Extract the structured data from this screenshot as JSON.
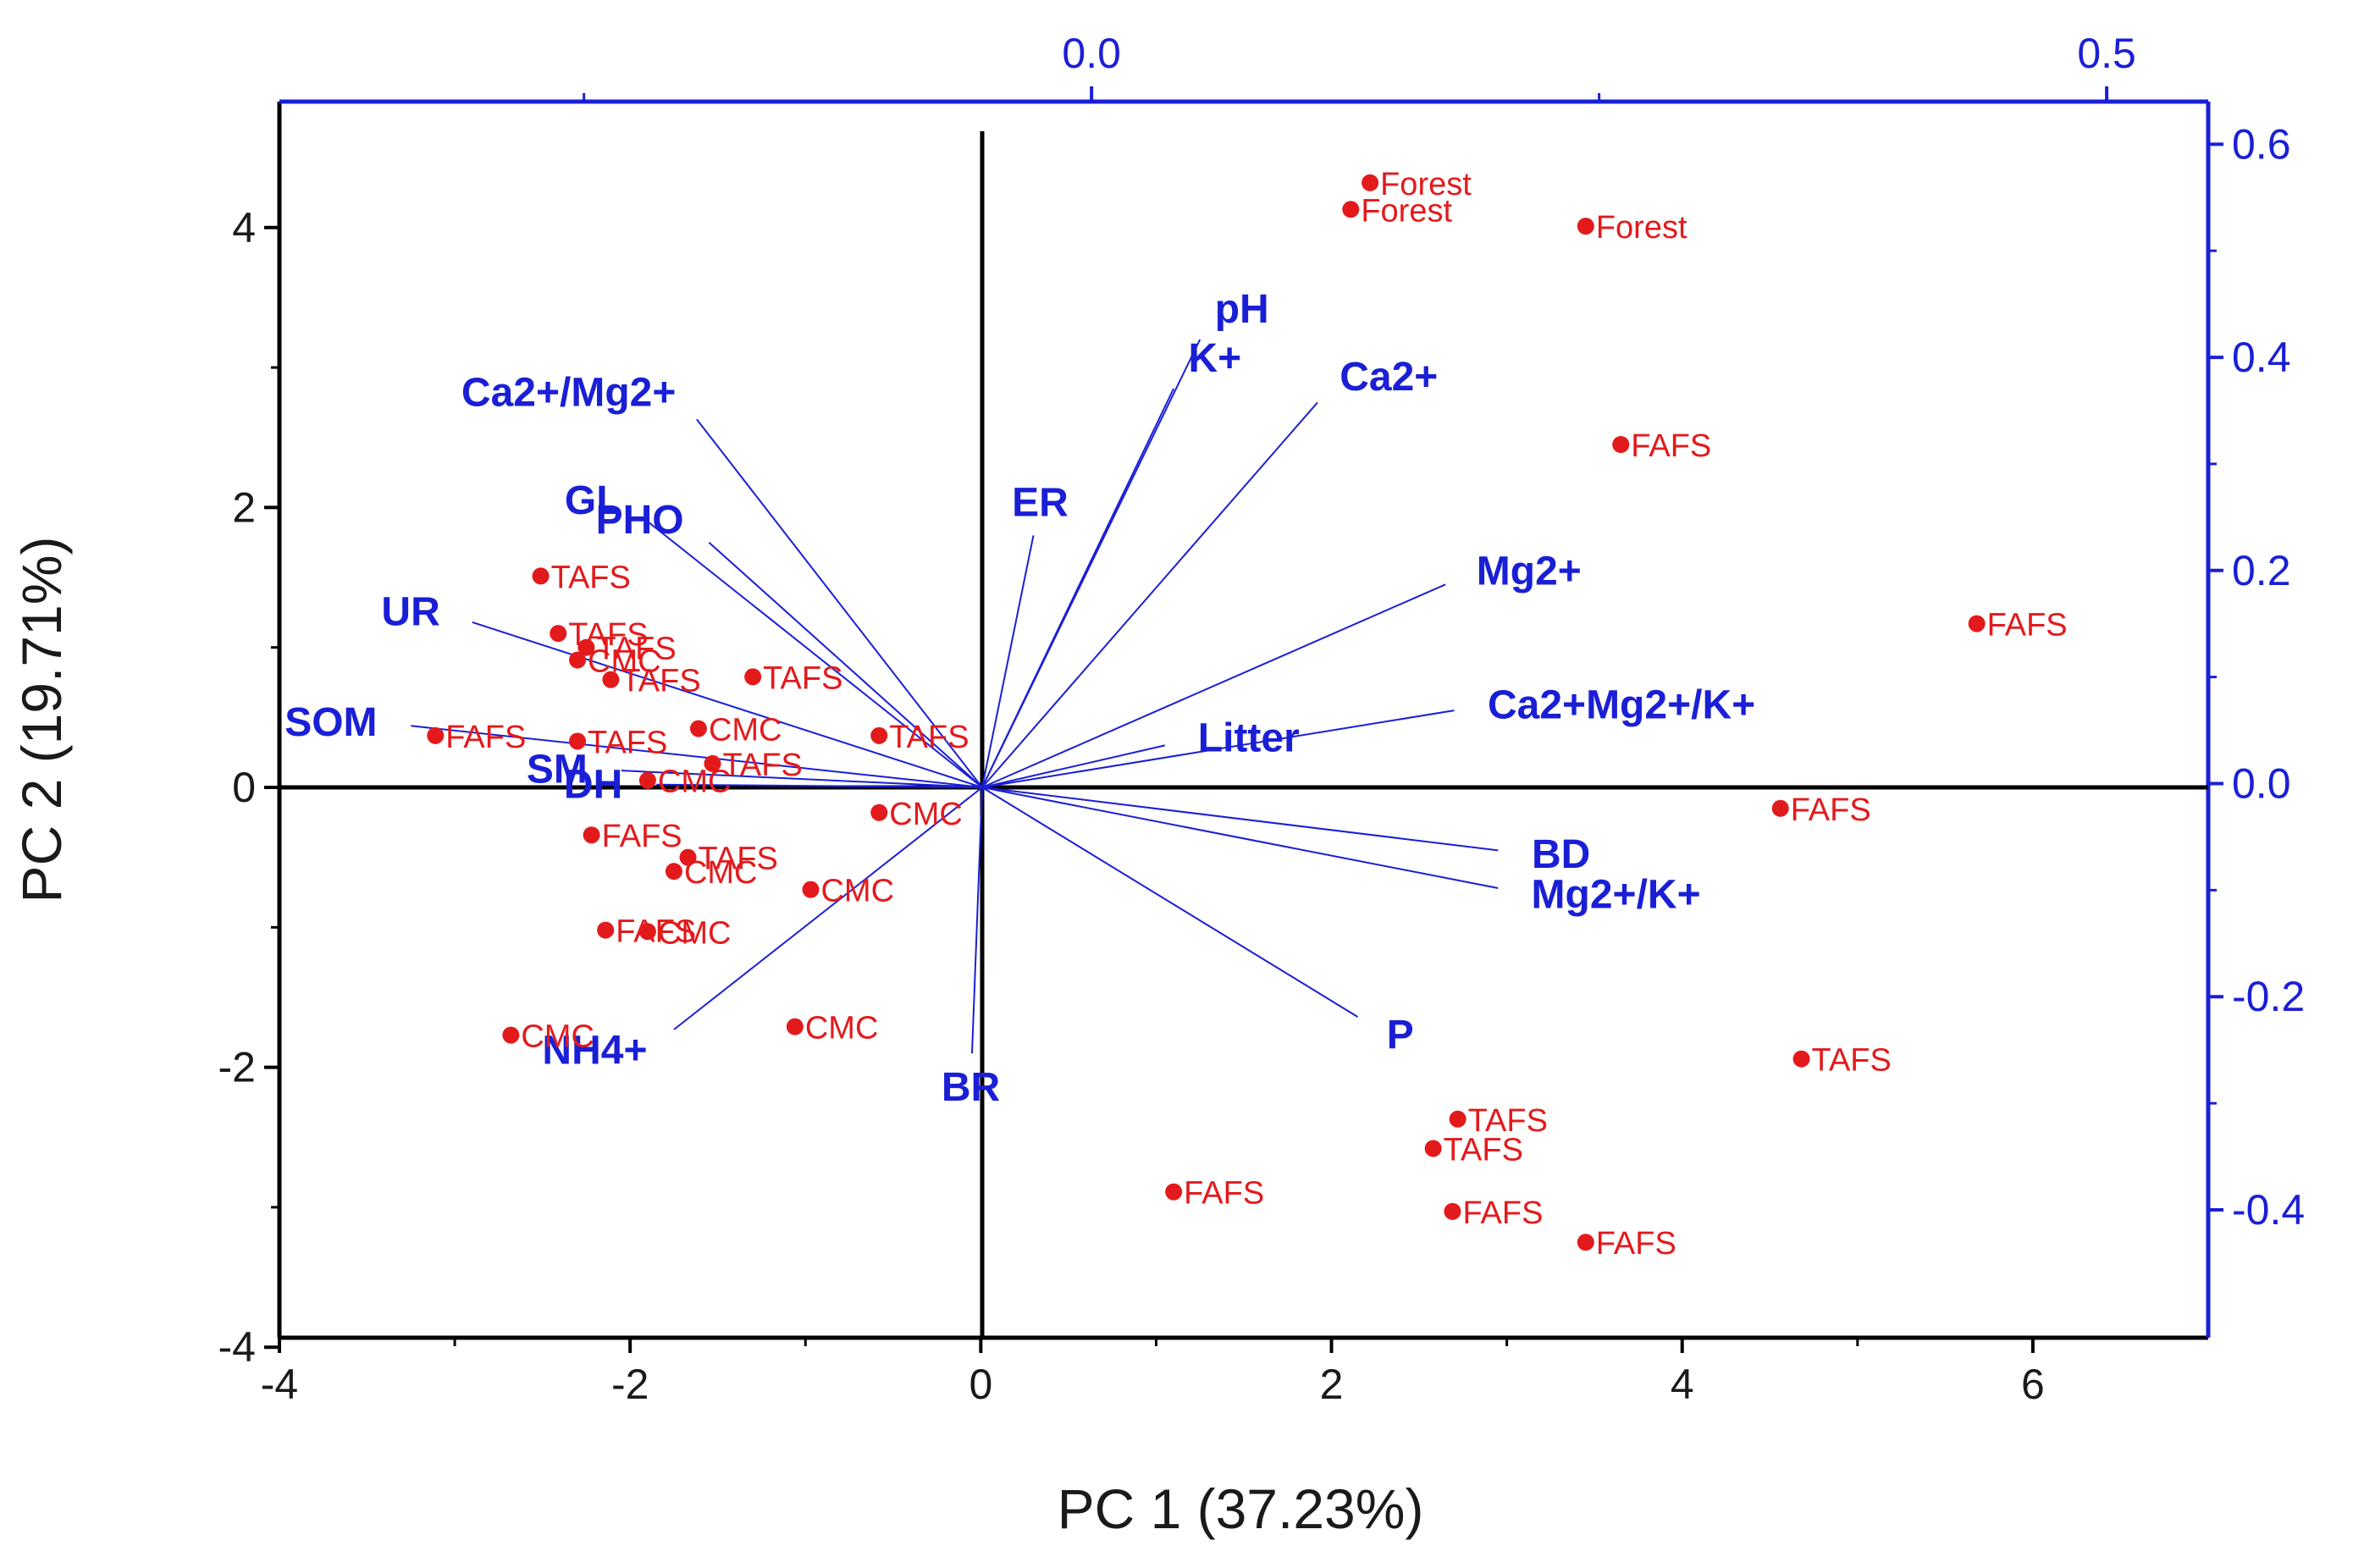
{
  "chart_data": {
    "type": "scatter",
    "subtype": "pca-biplot",
    "xlabel": "PC 1 (37.23%)",
    "ylabel": "PC 2 (19.71%)",
    "xlim": [
      -4,
      7
    ],
    "ylim": [
      -4,
      4.9
    ],
    "x_ticks": [
      "-4",
      "-2",
      "0",
      "2",
      "4",
      "6"
    ],
    "y_ticks": [
      "-4",
      "-2",
      "0",
      "2",
      "4"
    ],
    "top_axis": {
      "lim": [
        -0.4,
        0.55
      ],
      "ticks": [
        "0.0",
        "0.5"
      ],
      "color": "#1a1fd6"
    },
    "right_axis": {
      "lim": [
        -0.52,
        0.64
      ],
      "ticks": [
        "0.6",
        "0.4",
        "0.2",
        "0.0",
        "-0.2",
        "-0.4"
      ],
      "color": "#1a1fd6"
    },
    "point_color": "#e31a1c",
    "loading_color": "#1a1fd6",
    "points": [
      {
        "label": "Forest",
        "x": 2.22,
        "y": 4.32
      },
      {
        "label": "Forest",
        "x": 2.11,
        "y": 4.13
      },
      {
        "label": "Forest",
        "x": 3.45,
        "y": 4.01
      },
      {
        "label": "FAFS",
        "x": 3.65,
        "y": 2.45
      },
      {
        "label": "FAFS",
        "x": 5.68,
        "y": 1.17
      },
      {
        "label": "FAFS",
        "x": 4.56,
        "y": -0.15
      },
      {
        "label": "TAFS",
        "x": 4.68,
        "y": -1.94
      },
      {
        "label": "TAFS",
        "x": 2.72,
        "y": -2.37
      },
      {
        "label": "TAFS",
        "x": 2.58,
        "y": -2.58
      },
      {
        "label": "FAFS",
        "x": 2.69,
        "y": -3.03
      },
      {
        "label": "FAFS",
        "x": 3.45,
        "y": -3.25
      },
      {
        "label": "FAFS",
        "x": 1.1,
        "y": -2.89
      },
      {
        "label": "TAFS",
        "x": -2.51,
        "y": 1.51
      },
      {
        "label": "TAFS",
        "x": -2.41,
        "y": 1.1
      },
      {
        "label": "TAFS",
        "x": -2.25,
        "y": 1.0
      },
      {
        "label": "CMC",
        "x": -2.3,
        "y": 0.91
      },
      {
        "label": "TAFS",
        "x": -2.11,
        "y": 0.77
      },
      {
        "label": "TAFS",
        "x": -1.3,
        "y": 0.79
      },
      {
        "label": "FAFS",
        "x": -3.11,
        "y": 0.37
      },
      {
        "label": "TAFS",
        "x": -2.3,
        "y": 0.33
      },
      {
        "label": "CMC",
        "x": -1.61,
        "y": 0.42
      },
      {
        "label": "TAFS",
        "x": -0.58,
        "y": 0.37
      },
      {
        "label": "TAFS",
        "x": -1.53,
        "y": 0.17
      },
      {
        "label": "CMC",
        "x": -1.9,
        "y": 0.05
      },
      {
        "label": "CMC",
        "x": -0.58,
        "y": -0.18
      },
      {
        "label": "FAFS",
        "x": -2.22,
        "y": -0.34
      },
      {
        "label": "TAFS",
        "x": -1.67,
        "y": -0.5
      },
      {
        "label": "CMC",
        "x": -1.75,
        "y": -0.6
      },
      {
        "label": "CMC",
        "x": -0.97,
        "y": -0.73
      },
      {
        "label": "FAFS",
        "x": -2.14,
        "y": -1.02
      },
      {
        "label": "CMC",
        "x": -1.9,
        "y": -1.03
      },
      {
        "label": "CMC",
        "x": -2.68,
        "y": -1.77
      },
      {
        "label": "CMC",
        "x": -1.06,
        "y": -1.71
      }
    ],
    "loadings": [
      {
        "label": "pH",
        "x": 1.25,
        "y": 3.2
      },
      {
        "label": "K+",
        "x": 1.1,
        "y": 2.85
      },
      {
        "label": "Ca2+",
        "x": 1.92,
        "y": 2.75
      },
      {
        "label": "Ca2+/Mg2+",
        "x": -1.62,
        "y": 2.63
      },
      {
        "label": "ER",
        "x": 0.3,
        "y": 1.8
      },
      {
        "label": "GL",
        "x": -1.9,
        "y": 1.9
      },
      {
        "label": "PHO",
        "x": -1.55,
        "y": 1.75
      },
      {
        "label": "Mg2+",
        "x": 2.65,
        "y": 1.45
      },
      {
        "label": "UR",
        "x": -2.9,
        "y": 1.18
      },
      {
        "label": "Ca2+Mg2+/K+",
        "x": 2.7,
        "y": 0.55
      },
      {
        "label": "Litter",
        "x": 1.05,
        "y": 0.3
      },
      {
        "label": "SOM",
        "x": -3.25,
        "y": 0.44
      },
      {
        "label": "SM",
        "x": -2.05,
        "y": 0.12
      },
      {
        "label": "DH",
        "x": -1.85,
        "y": 0.02
      },
      {
        "label": "BD",
        "x": 2.95,
        "y": -0.45
      },
      {
        "label": "Mg2+/K+",
        "x": 2.95,
        "y": -0.72
      },
      {
        "label": "P",
        "x": 2.15,
        "y": -1.64
      },
      {
        "label": "NH4+",
        "x": -1.75,
        "y": -1.73
      },
      {
        "label": "BR",
        "x": -0.05,
        "y": -1.9
      }
    ]
  }
}
